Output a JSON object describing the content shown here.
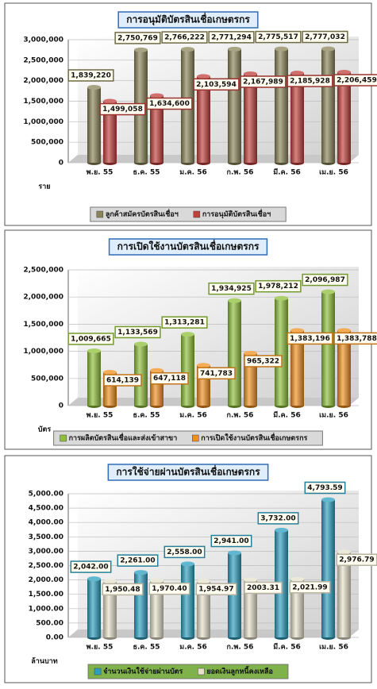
{
  "chart_data": [
    {
      "type": "bar",
      "title": "การอนุมัติบัตรสินเชื่อเกษตรกร",
      "y_unit": "ราย",
      "categories": [
        "พ.ย. 55",
        "ธ.ค. 55",
        "ม.ค. 56",
        "ก.พ. 56",
        "มี.ค. 56",
        "เม.ย. 56"
      ],
      "series": [
        {
          "name": "ลูกค้าสมัครบัตรสินเชื่อฯ",
          "color": "#8b8458",
          "values": [
            1839220,
            2750769,
            2766222,
            2771294,
            2775517,
            2777032
          ],
          "value_labels": [
            "1,839,220",
            "2,750,769",
            "2,766,222",
            "2,771,294",
            "2,775,517",
            "2,777,032"
          ]
        },
        {
          "name": "การอนุมัติบัตรสินเชื่อฯ",
          "color": "#c0403c",
          "values": [
            1499058,
            1634600,
            2103594,
            2167989,
            2185928,
            2206459
          ],
          "value_labels": [
            "1,499,058",
            "1,634,600",
            "2,103,594",
            "2,167,989",
            "2,185,928",
            "2,206,459"
          ]
        }
      ],
      "ylim": [
        0,
        3000000
      ],
      "yticks": [
        0,
        {
          "value": 500000,
          "label": "500,000"
        },
        {
          "value": 1000000,
          "label": "1,000,000"
        },
        {
          "value": 1500000,
          "label": "1,500,000"
        },
        {
          "value": 2000000,
          "label": "2,000,000"
        },
        {
          "value": 2500000,
          "label": "2,500,000"
        },
        {
          "value": 3000000,
          "label": "3,000,000"
        }
      ],
      "grid": true
    },
    {
      "type": "bar",
      "title": "การเปิดใช้งานบัตรสินเชื่อเกษตรกร",
      "y_unit": "บัตร",
      "categories": [
        "พ.ย. 55",
        "ธ.ค. 55",
        "ม.ค. 56",
        "ก.พ. 56",
        "มี.ค. 56",
        "เม.ย. 56"
      ],
      "series": [
        {
          "name": "การผลิตบัตรสินเชื่อและส่งเข้าสาขา",
          "color": "#8fbf3a",
          "values": [
            1009665,
            1133569,
            1313281,
            1934925,
            1978212,
            2096987
          ],
          "value_labels": [
            "1,009,665",
            "1,133,569",
            "1,313,281",
            "1,934,925",
            "1,978,212",
            "2,096,987"
          ]
        },
        {
          "name": "การเปิดใช้งานบัตรสินเชื่อเกษตรกร",
          "color": "#f0901e",
          "values": [
            614139,
            647118,
            741783,
            965322,
            1383196,
            1383788
          ],
          "value_labels": [
            "614,139",
            "647,118",
            "741,783",
            "965,322",
            "1,383,196",
            "1,383,788"
          ]
        }
      ],
      "ylim": [
        0,
        2500000
      ],
      "yticks": [
        0,
        {
          "value": 500000,
          "label": "500,000"
        },
        {
          "value": 1000000,
          "label": "1,000,000"
        },
        {
          "value": 1500000,
          "label": "1,500,000"
        },
        {
          "value": 2000000,
          "label": "2,000,000"
        },
        {
          "value": 2500000,
          "label": "2,500,000"
        }
      ],
      "grid": true
    },
    {
      "type": "bar",
      "title": "การใช้จ่ายผ่านบัตรสินเชื่อเกษตรกร",
      "y_unit": "ล้านบาท",
      "categories": [
        "พ.ย. 55",
        "ธ.ค. 55",
        "ม.ค. 56",
        "ก.พ. 56",
        "มี.ค. 56",
        "เม.ย. 56"
      ],
      "series": [
        {
          "name": "จำนวนเงินใช้จ่ายผ่านบัตร",
          "color": "#2e9fc0",
          "values": [
            2042,
            2261,
            2558,
            2941,
            3732,
            4793.59
          ],
          "value_labels": [
            "2,042.00",
            "2,261.00",
            "2,558.00",
            "2,941.00",
            "3,732.00",
            "4,793.59"
          ]
        },
        {
          "name": "ยอดเงินลูกหนี้คงเหลือ",
          "color": "#e6e1cc",
          "values": [
            1950.48,
            1970.4,
            1954.97,
            2003.31,
            2021.99,
            2976.79
          ],
          "value_labels": [
            "1,950.48",
            "1,970.40",
            "1,954.97",
            "2003.31",
            "2,021.99",
            "2,976.79"
          ]
        }
      ],
      "ylim": [
        0,
        5000
      ],
      "yticks": [
        {
          "value": 0,
          "label": "0.00"
        },
        {
          "value": 500,
          "label": "500.00"
        },
        {
          "value": 1000,
          "label": "1,000.00"
        },
        {
          "value": 1500,
          "label": "1,500.00"
        },
        {
          "value": 2000,
          "label": "2,000.00"
        },
        {
          "value": 2500,
          "label": "2,500.00"
        },
        {
          "value": 3000,
          "label": "3,000.00"
        },
        {
          "value": 3500,
          "label": "3,500.00"
        },
        {
          "value": 4000,
          "label": "4,000.00"
        },
        {
          "value": 4500,
          "label": "4,500.00"
        },
        {
          "value": 5000,
          "label": "5,000.00"
        }
      ],
      "grid": true
    }
  ]
}
